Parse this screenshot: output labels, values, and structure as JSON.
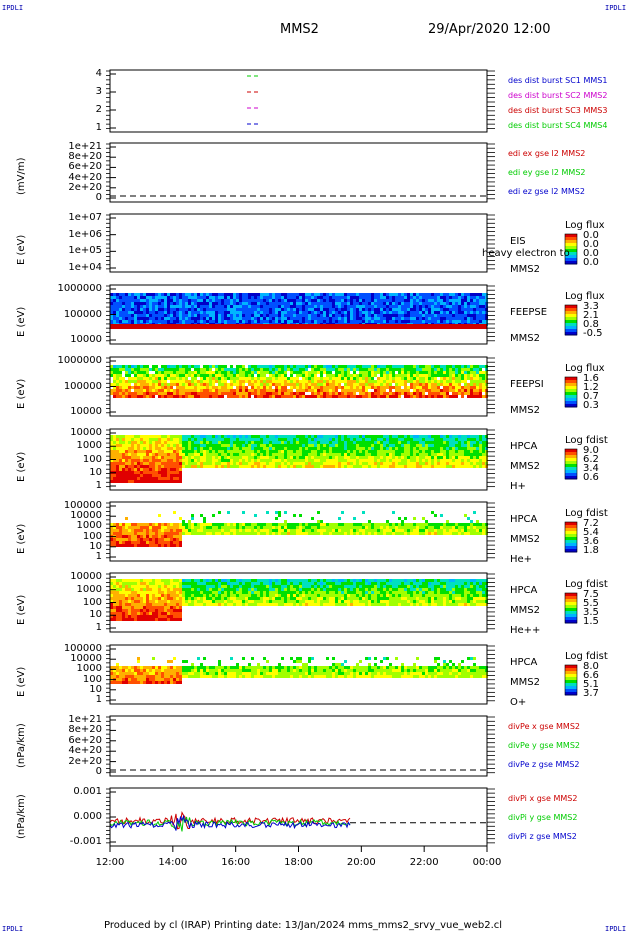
{
  "corners": {
    "tl": "IPDLI",
    "tr": "IPDLI",
    "bl": "IPDLI",
    "br": "IPDLI"
  },
  "header": {
    "left": "MMS2",
    "right": "29/Apr/2020 12:00"
  },
  "footer": "Produced by cl (IRAP)   Printing date: 13/Jan/2024   mms_mms2_srvy_vue_web2.cl",
  "chart_data": {
    "type": "multi-panel time series / spectrogram",
    "x_ticks": [
      "12:00",
      "14:00",
      "16:00",
      "18:00",
      "20:00",
      "22:00",
      "00:00"
    ],
    "panels": [
      {
        "id": "des",
        "ylabel": "",
        "yticks": [
          "4",
          "3",
          "2",
          "1"
        ],
        "legend": [
          {
            "text": "des dist burst SC1 MMS1",
            "color": "#0000cc"
          },
          {
            "text": "des dist burst SC2 MMS2",
            "color": "#cc00cc"
          },
          {
            "text": "des dist burst SC3 MMS3",
            "color": "#cc0000"
          },
          {
            "text": "des dist burst SC4 MMS4",
            "color": "#00cc00"
          }
        ]
      },
      {
        "id": "edi",
        "ylabel": "(mV/m)",
        "yticks": [
          "1e+21",
          "8e+20",
          "6e+20",
          "4e+20",
          "2e+20",
          "0"
        ],
        "legend": [
          {
            "text": "edi ex gse l2 MMS2",
            "color": "#cc0000"
          },
          {
            "text": "edi ey gse l2 MMS2",
            "color": "#00cc00"
          },
          {
            "text": "edi ez gse l2 MMS2",
            "color": "#0000cc"
          }
        ]
      },
      {
        "id": "eis",
        "ylabel": "E (eV)",
        "yticks": [
          "1e+07",
          "1e+06",
          "1e+05",
          "1e+04"
        ],
        "side": [
          "EIS",
          "heavy electron to",
          "MMS2"
        ],
        "cbar_title": "Log flux",
        "cbar_vals": [
          "0.0",
          "0.0",
          "0.0",
          "0.0"
        ]
      },
      {
        "id": "feepse",
        "ylabel": "E (eV)",
        "yticks": [
          "1000000",
          "100000",
          "10000"
        ],
        "side": [
          "FEEPSE",
          "MMS2"
        ],
        "cbar_title": "Log flux",
        "cbar_vals": [
          "3.3",
          "2.1",
          "0.8",
          "-0.5"
        ]
      },
      {
        "id": "feepsi",
        "ylabel": "E (eV)",
        "yticks": [
          "1000000",
          "100000",
          "10000"
        ],
        "side": [
          "FEEPSI",
          "MMS2"
        ],
        "cbar_title": "Log flux",
        "cbar_vals": [
          "1.6",
          "1.2",
          "0.7",
          "0.3"
        ]
      },
      {
        "id": "hpca_h",
        "ylabel": "E (eV)",
        "yticks": [
          "10000",
          "1000",
          "100",
          "10",
          "1"
        ],
        "side": [
          "HPCA",
          "MMS2",
          "H+"
        ],
        "cbar_title": "Log fdist",
        "cbar_vals": [
          "9.0",
          "6.2",
          "3.4",
          "0.6"
        ]
      },
      {
        "id": "hpca_he",
        "ylabel": "E (eV)",
        "yticks": [
          "100000",
          "10000",
          "1000",
          "100",
          "10",
          "1"
        ],
        "side": [
          "HPCA",
          "MMS2",
          "He+"
        ],
        "cbar_title": "Log fdist",
        "cbar_vals": [
          "7.2",
          "5.4",
          "3.6",
          "1.8"
        ]
      },
      {
        "id": "hpca_hepp",
        "ylabel": "E (eV)",
        "yticks": [
          "10000",
          "1000",
          "100",
          "10",
          "1"
        ],
        "side": [
          "HPCA",
          "MMS2",
          "He++"
        ],
        "cbar_title": "Log fdist",
        "cbar_vals": [
          "7.5",
          "5.5",
          "3.5",
          "1.5"
        ]
      },
      {
        "id": "hpca_o",
        "ylabel": "E (eV)",
        "yticks": [
          "100000",
          "10000",
          "1000",
          "100",
          "10",
          "1"
        ],
        "side": [
          "HPCA",
          "MMS2",
          "O+"
        ],
        "cbar_title": "Log fdist",
        "cbar_vals": [
          "8.0",
          "6.6",
          "5.1",
          "3.7"
        ]
      },
      {
        "id": "divpe",
        "ylabel": "(nPa/km)",
        "yticks": [
          "1e+21",
          "8e+20",
          "6e+20",
          "4e+20",
          "2e+20",
          "0"
        ],
        "legend": [
          {
            "text": "divPe x gse MMS2",
            "color": "#cc0000"
          },
          {
            "text": "divPe y gse MMS2",
            "color": "#00cc00"
          },
          {
            "text": "divPe z gse MMS2",
            "color": "#0000cc"
          }
        ]
      },
      {
        "id": "divpi",
        "ylabel": "(nPa/km)",
        "yticks": [
          "0.001",
          "0.000",
          "-0.001"
        ],
        "legend": [
          {
            "text": "divPi x gse MMS2",
            "color": "#cc0000"
          },
          {
            "text": "divPi y gse MMS2",
            "color": "#00cc00"
          },
          {
            "text": "divPi z gse MMS2",
            "color": "#0000cc"
          }
        ]
      }
    ]
  }
}
